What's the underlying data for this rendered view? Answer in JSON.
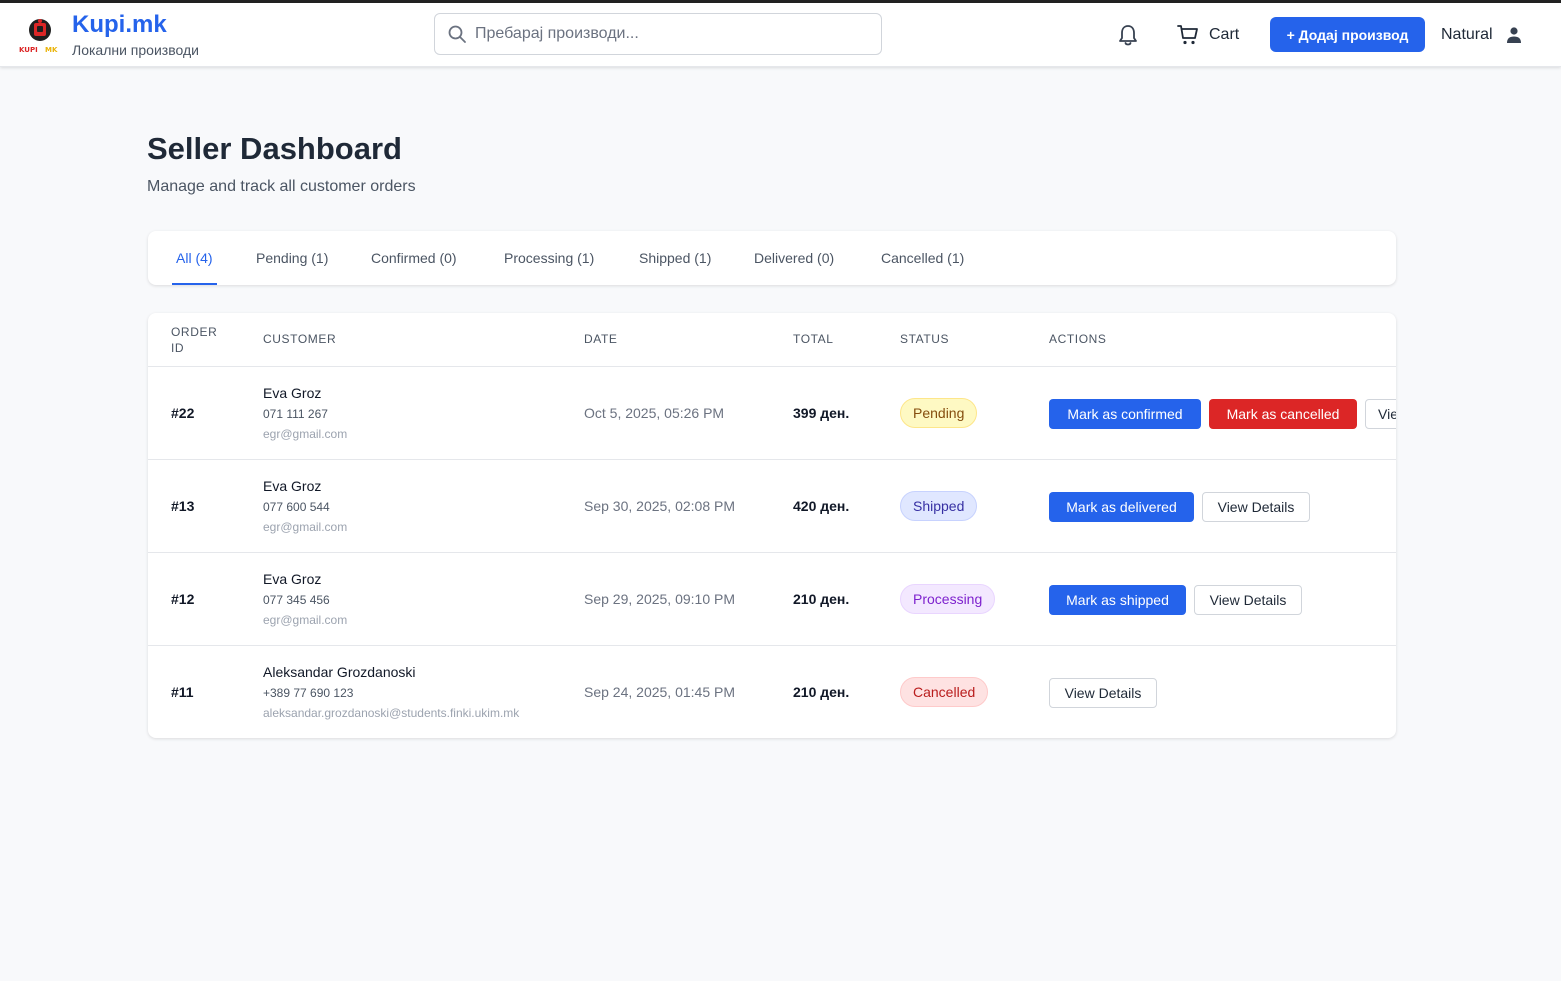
{
  "header": {
    "brand_title": "Kupi.mk",
    "brand_subtitle": "Локални производи",
    "logo_text": "KUPI.MK",
    "search_placeholder": "Пребарај производи...",
    "cart_label": "Cart",
    "add_product_label": "+ Додај производ",
    "user_name": "Natural",
    "accent_color": "#2563eb"
  },
  "page": {
    "title": "Seller Dashboard",
    "subtitle": "Manage and track all customer orders"
  },
  "tabs": [
    {
      "label": "All (4)",
      "active": true
    },
    {
      "label": "Pending (1)",
      "active": false
    },
    {
      "label": "Confirmed (0)",
      "active": false
    },
    {
      "label": "Processing (1)",
      "active": false
    },
    {
      "label": "Shipped (1)",
      "active": false
    },
    {
      "label": "Delivered (0)",
      "active": false
    },
    {
      "label": "Cancelled (1)",
      "active": false
    }
  ],
  "table": {
    "columns": {
      "order_id_line1": "ORDER",
      "order_id_line2": "ID",
      "customer": "CUSTOMER",
      "date": "DATE",
      "total": "TOTAL",
      "status": "STATUS",
      "actions": "ACTIONS"
    },
    "rows": [
      {
        "id": "#22",
        "name": "Eva Groz",
        "phone": "071 111 267",
        "email": "egr@gmail.com",
        "date": "Oct 5, 2025, 05:26 PM",
        "total": "399 ден.",
        "status": "Pending",
        "actions": [
          "Mark as confirmed",
          "Mark as cancelled",
          "View Details"
        ]
      },
      {
        "id": "#13",
        "name": "Eva Groz",
        "phone": "077 600 544",
        "email": "egr@gmail.com",
        "date": "Sep 30, 2025, 02:08 PM",
        "total": "420 ден.",
        "status": "Shipped",
        "actions": [
          "Mark as delivered",
          "View Details"
        ]
      },
      {
        "id": "#12",
        "name": "Eva Groz",
        "phone": "077 345 456",
        "email": "egr@gmail.com",
        "date": "Sep 29, 2025, 09:10 PM",
        "total": "210 ден.",
        "status": "Processing",
        "actions": [
          "Mark as shipped",
          "View Details"
        ]
      },
      {
        "id": "#11",
        "name": "Aleksandar Grozdanoski",
        "phone": "+389 77 690 123",
        "email": "aleksandar.grozdanoski@students.finki.ukim.mk",
        "date": "Sep 24, 2025, 01:45 PM",
        "total": "210 ден.",
        "status": "Cancelled",
        "actions": [
          "View Details"
        ]
      }
    ]
  }
}
